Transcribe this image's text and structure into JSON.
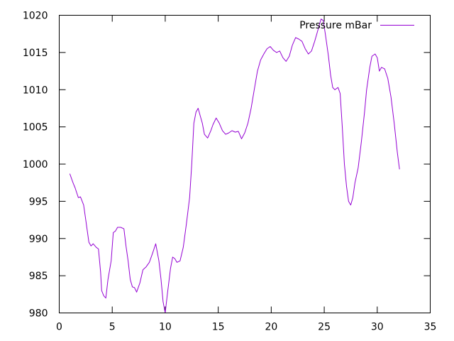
{
  "chart_data": {
    "type": "line",
    "title": "",
    "xlabel": "",
    "ylabel": "",
    "xlim": [
      0,
      35
    ],
    "ylim": [
      980,
      1020
    ],
    "x_ticks": [
      0,
      5,
      10,
      15,
      20,
      25,
      30,
      35
    ],
    "y_ticks": [
      980,
      985,
      990,
      995,
      1000,
      1005,
      1010,
      1015,
      1020
    ],
    "grid": false,
    "legend_position": "top-right",
    "series": [
      {
        "name": "Pressure mBar",
        "color": "#9400d3",
        "points": [
          [
            1.0,
            998.7
          ],
          [
            1.3,
            997.5
          ],
          [
            1.5,
            996.8
          ],
          [
            1.8,
            995.5
          ],
          [
            2.0,
            995.6
          ],
          [
            2.3,
            994.5
          ],
          [
            2.5,
            992.5
          ],
          [
            2.8,
            989.5
          ],
          [
            3.0,
            989.0
          ],
          [
            3.2,
            989.3
          ],
          [
            3.5,
            988.8
          ],
          [
            3.7,
            988.6
          ],
          [
            3.9,
            985.5
          ],
          [
            4.0,
            983.0
          ],
          [
            4.2,
            982.3
          ],
          [
            4.4,
            982.0
          ],
          [
            4.6,
            984.5
          ],
          [
            4.9,
            987.0
          ],
          [
            5.1,
            990.8
          ],
          [
            5.3,
            991.0
          ],
          [
            5.5,
            991.5
          ],
          [
            5.8,
            991.5
          ],
          [
            6.1,
            991.3
          ],
          [
            6.3,
            989.0
          ],
          [
            6.5,
            987.0
          ],
          [
            6.7,
            984.5
          ],
          [
            6.9,
            983.5
          ],
          [
            7.1,
            983.4
          ],
          [
            7.3,
            982.8
          ],
          [
            7.6,
            984.0
          ],
          [
            7.9,
            985.8
          ],
          [
            8.2,
            986.2
          ],
          [
            8.5,
            986.8
          ],
          [
            8.8,
            988.0
          ],
          [
            9.1,
            989.3
          ],
          [
            9.4,
            987.0
          ],
          [
            9.6,
            984.5
          ],
          [
            9.8,
            981.5
          ],
          [
            10.0,
            980.0
          ],
          [
            10.2,
            982.5
          ],
          [
            10.5,
            986.0
          ],
          [
            10.7,
            987.5
          ],
          [
            10.9,
            987.3
          ],
          [
            11.1,
            986.8
          ],
          [
            11.4,
            987.0
          ],
          [
            11.7,
            988.8
          ],
          [
            12.0,
            992.0
          ],
          [
            12.3,
            995.5
          ],
          [
            12.5,
            1000.0
          ],
          [
            12.7,
            1005.5
          ],
          [
            12.9,
            1007.0
          ],
          [
            13.1,
            1007.5
          ],
          [
            13.3,
            1006.5
          ],
          [
            13.5,
            1005.5
          ],
          [
            13.7,
            1004.0
          ],
          [
            14.0,
            1003.5
          ],
          [
            14.3,
            1004.5
          ],
          [
            14.5,
            1005.3
          ],
          [
            14.8,
            1006.2
          ],
          [
            15.1,
            1005.5
          ],
          [
            15.4,
            1004.5
          ],
          [
            15.7,
            1004.0
          ],
          [
            16.0,
            1004.2
          ],
          [
            16.3,
            1004.5
          ],
          [
            16.6,
            1004.3
          ],
          [
            16.9,
            1004.4
          ],
          [
            17.2,
            1003.4
          ],
          [
            17.5,
            1004.2
          ],
          [
            17.8,
            1005.5
          ],
          [
            18.1,
            1007.5
          ],
          [
            18.4,
            1010.0
          ],
          [
            18.7,
            1012.5
          ],
          [
            19.0,
            1014.0
          ],
          [
            19.3,
            1014.8
          ],
          [
            19.6,
            1015.5
          ],
          [
            19.9,
            1015.8
          ],
          [
            20.2,
            1015.3
          ],
          [
            20.5,
            1015.0
          ],
          [
            20.8,
            1015.2
          ],
          [
            21.1,
            1014.3
          ],
          [
            21.4,
            1013.8
          ],
          [
            21.7,
            1014.5
          ],
          [
            22.0,
            1016.0
          ],
          [
            22.3,
            1017.0
          ],
          [
            22.6,
            1016.8
          ],
          [
            22.9,
            1016.5
          ],
          [
            23.2,
            1015.5
          ],
          [
            23.5,
            1014.8
          ],
          [
            23.8,
            1015.2
          ],
          [
            24.1,
            1016.5
          ],
          [
            24.4,
            1018.0
          ],
          [
            24.7,
            1019.5
          ],
          [
            24.9,
            1019.3
          ],
          [
            25.1,
            1017.5
          ],
          [
            25.4,
            1014.5
          ],
          [
            25.6,
            1012.0
          ],
          [
            25.8,
            1010.3
          ],
          [
            26.0,
            1010.0
          ],
          [
            26.3,
            1010.3
          ],
          [
            26.5,
            1009.5
          ],
          [
            26.7,
            1005.0
          ],
          [
            26.9,
            1000.0
          ],
          [
            27.1,
            997.0
          ],
          [
            27.3,
            995.0
          ],
          [
            27.5,
            994.5
          ],
          [
            27.7,
            995.5
          ],
          [
            27.9,
            997.5
          ],
          [
            28.2,
            999.5
          ],
          [
            28.5,
            1003.0
          ],
          [
            28.8,
            1007.0
          ],
          [
            29.0,
            1010.0
          ],
          [
            29.3,
            1013.0
          ],
          [
            29.5,
            1014.5
          ],
          [
            29.8,
            1014.8
          ],
          [
            30.0,
            1014.3
          ],
          [
            30.2,
            1012.5
          ],
          [
            30.4,
            1013.0
          ],
          [
            30.7,
            1012.8
          ],
          [
            31.0,
            1011.5
          ],
          [
            31.3,
            1009.0
          ],
          [
            31.6,
            1005.5
          ],
          [
            31.9,
            1001.5
          ],
          [
            32.1,
            999.3
          ]
        ]
      }
    ]
  }
}
